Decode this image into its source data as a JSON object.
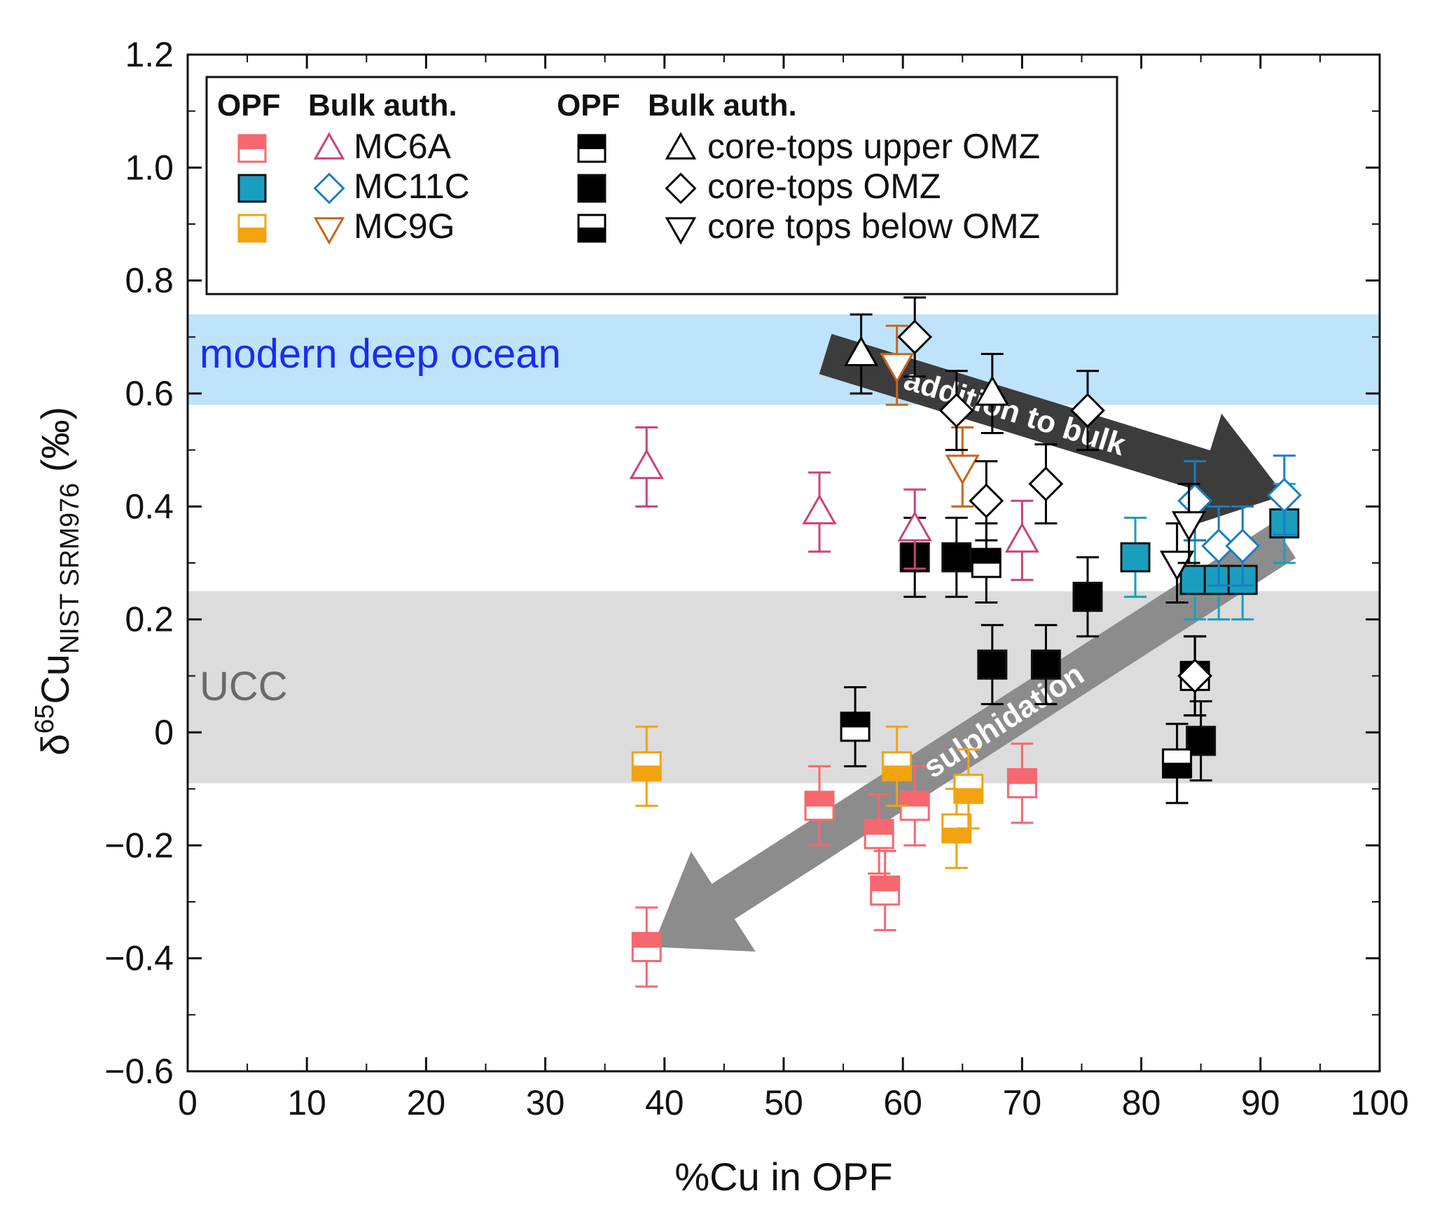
{
  "chart_data": {
    "type": "scatter",
    "xlabel": "%Cu in OPF",
    "ylabel": {
      "prefix": "δ",
      "sup": "65",
      "main": "Cu",
      "sub": "NIST SRM976",
      "suffix": " (‰)"
    },
    "xlim": [
      0,
      100
    ],
    "ylim": [
      -0.6,
      1.2
    ],
    "x_ticks": [
      0,
      10,
      20,
      30,
      40,
      50,
      60,
      70,
      80,
      90,
      100
    ],
    "y_ticks": [
      {
        "value": 1.2,
        "label": "1.2"
      },
      {
        "value": 1.0,
        "label": "1.0"
      },
      {
        "value": 0.8,
        "label": "0.8"
      },
      {
        "value": 0.6,
        "label": "0.6"
      },
      {
        "value": 0.4,
        "label": "0.4"
      },
      {
        "value": 0.2,
        "label": "0.2"
      },
      {
        "value": 0.0,
        "label": "0"
      },
      {
        "value": -0.2,
        "label": "−0.2"
      },
      {
        "value": -0.4,
        "label": "−0.4"
      },
      {
        "value": -0.6,
        "label": "−0.6"
      }
    ],
    "bands": [
      {
        "name": "modern-deep-ocean",
        "label": "modern deep ocean",
        "y0": 0.58,
        "y1": 0.74,
        "color": "#bfe3fa"
      },
      {
        "name": "ucc",
        "label": "UCC",
        "y0": -0.09,
        "y1": 0.25,
        "color": "#dcdcdc"
      }
    ],
    "arrows": [
      {
        "name": "addition-to-bulk",
        "label": "addition to bulk",
        "from": [
          53.5,
          0.67
        ],
        "to": [
          92,
          0.42
        ],
        "color": "#3c3c3c"
      },
      {
        "name": "sulphidation",
        "label": "sulphidation",
        "from": [
          92,
          0.34
        ],
        "to": [
          39,
          -0.38
        ],
        "color": "#8c8c8c"
      }
    ],
    "colors": {
      "MC6A": "#f7676f",
      "MC11C": "#1a9ec0",
      "MC9G": "#f2a310",
      "core": "#000000",
      "MC6A_bulk": "#c9427a",
      "MC11C_bulk": "#1a7dc0",
      "MC9G_bulk": "#c8651a"
    },
    "legend": {
      "position": "top",
      "headers": [
        "OPF",
        "Bulk auth.",
        "OPF",
        "Bulk auth."
      ],
      "left": [
        {
          "label": "MC6A",
          "opf_color": "#f7676f",
          "opf_style": "top-filled",
          "bulk_marker": "triangle-up",
          "bulk_color": "#c9427a"
        },
        {
          "label": "MC11C",
          "opf_color": "#1a9ec0",
          "opf_style": "filled",
          "bulk_marker": "diamond",
          "bulk_color": "#1a7dc0"
        },
        {
          "label": "MC9G",
          "opf_color": "#f2a310",
          "opf_style": "bottom-filled",
          "bulk_marker": "triangle-down",
          "bulk_color": "#c8651a"
        }
      ],
      "right": [
        {
          "label": "core-tops upper OMZ",
          "opf_color": "#000000",
          "opf_style": "top-filled",
          "bulk_marker": "triangle-up",
          "bulk_color": "#000000"
        },
        {
          "label": "core-tops OMZ",
          "opf_color": "#000000",
          "opf_style": "filled",
          "bulk_marker": "diamond",
          "bulk_color": "#000000"
        },
        {
          "label": "core tops below OMZ",
          "opf_color": "#000000",
          "opf_style": "bottom-filled",
          "bulk_marker": "triangle-down",
          "bulk_color": "#000000"
        }
      ]
    },
    "series": [
      {
        "name": "MC6A OPF",
        "marker": "square",
        "style": "top-filled",
        "color": "#f7676f",
        "points": [
          [
            38.5,
            -0.38,
            0.07
          ],
          [
            53,
            -0.13,
            0.07
          ],
          [
            58,
            -0.18,
            0.07
          ],
          [
            58.5,
            -0.28,
            0.07
          ],
          [
            61,
            -0.13,
            0.07
          ],
          [
            70,
            -0.09,
            0.07
          ]
        ]
      },
      {
        "name": "MC11C OPF",
        "marker": "square",
        "style": "filled",
        "color": "#1a9ec0",
        "points": [
          [
            79.5,
            0.31,
            0.07
          ],
          [
            84.5,
            0.27,
            0.07
          ],
          [
            86.5,
            0.27,
            0.07
          ],
          [
            88.5,
            0.27,
            0.07
          ],
          [
            92,
            0.37,
            0.07
          ]
        ]
      },
      {
        "name": "MC9G OPF",
        "marker": "square",
        "style": "bottom-filled",
        "color": "#f2a310",
        "points": [
          [
            38.5,
            -0.06,
            0.07
          ],
          [
            59.5,
            -0.06,
            0.07
          ],
          [
            64.5,
            -0.17,
            0.07
          ],
          [
            65.5,
            -0.1,
            0.07
          ]
        ]
      },
      {
        "name": "core-tops upper OMZ OPF",
        "marker": "square",
        "style": "top-filled",
        "color": "#000000",
        "points": [
          [
            56,
            0.01,
            0.07
          ],
          [
            67,
            0.3,
            0.07
          ],
          [
            84.5,
            0.1,
            0.07
          ]
        ]
      },
      {
        "name": "core-tops OMZ OPF",
        "marker": "square",
        "style": "filled",
        "color": "#000000",
        "points": [
          [
            61,
            0.31,
            0.07
          ],
          [
            64.5,
            0.31,
            0.07
          ],
          [
            67.5,
            0.12,
            0.07
          ],
          [
            72,
            0.12,
            0.07
          ],
          [
            75.5,
            0.24,
            0.07
          ],
          [
            85,
            -0.015,
            0.07
          ]
        ]
      },
      {
        "name": "core tops below OMZ OPF",
        "marker": "square",
        "style": "bottom-filled",
        "color": "#000000",
        "points": [
          [
            83,
            -0.055,
            0.07
          ]
        ]
      },
      {
        "name": "MC6A bulk",
        "marker": "triangle-up",
        "color": "#c9427a",
        "points": [
          [
            38.5,
            0.47,
            0.07
          ],
          [
            53,
            0.39,
            0.07
          ],
          [
            61,
            0.36,
            0.07
          ],
          [
            70,
            0.34,
            0.07
          ]
        ]
      },
      {
        "name": "MC11C bulk",
        "marker": "diamond",
        "color": "#1a7dc0",
        "points": [
          [
            84.5,
            0.41,
            0.07
          ],
          [
            86.5,
            0.33,
            0.07
          ],
          [
            88.5,
            0.33,
            0.07
          ],
          [
            92,
            0.42,
            0.07
          ]
        ]
      },
      {
        "name": "MC9G bulk",
        "marker": "triangle-down",
        "color": "#c8651a",
        "points": [
          [
            59.5,
            0.65,
            0.07
          ],
          [
            65,
            0.47,
            0.07
          ]
        ]
      },
      {
        "name": "core-tops upper OMZ bulk",
        "marker": "triangle-up",
        "color": "#000000",
        "points": [
          [
            56.5,
            0.67,
            0.07
          ],
          [
            67.5,
            0.6,
            0.07
          ]
        ]
      },
      {
        "name": "core-tops OMZ bulk",
        "marker": "diamond",
        "color": "#000000",
        "points": [
          [
            61,
            0.7,
            0.07
          ],
          [
            64.5,
            0.57,
            0.07
          ],
          [
            67,
            0.41,
            0.07
          ],
          [
            72,
            0.44,
            0.07
          ],
          [
            75.5,
            0.57,
            0.07
          ],
          [
            84.5,
            0.1,
            0.07
          ]
        ]
      },
      {
        "name": "core tops below OMZ bulk",
        "marker": "triangle-down",
        "color": "#000000",
        "points": [
          [
            83,
            0.3,
            0.07
          ],
          [
            84,
            0.37,
            0.07
          ]
        ]
      }
    ]
  }
}
